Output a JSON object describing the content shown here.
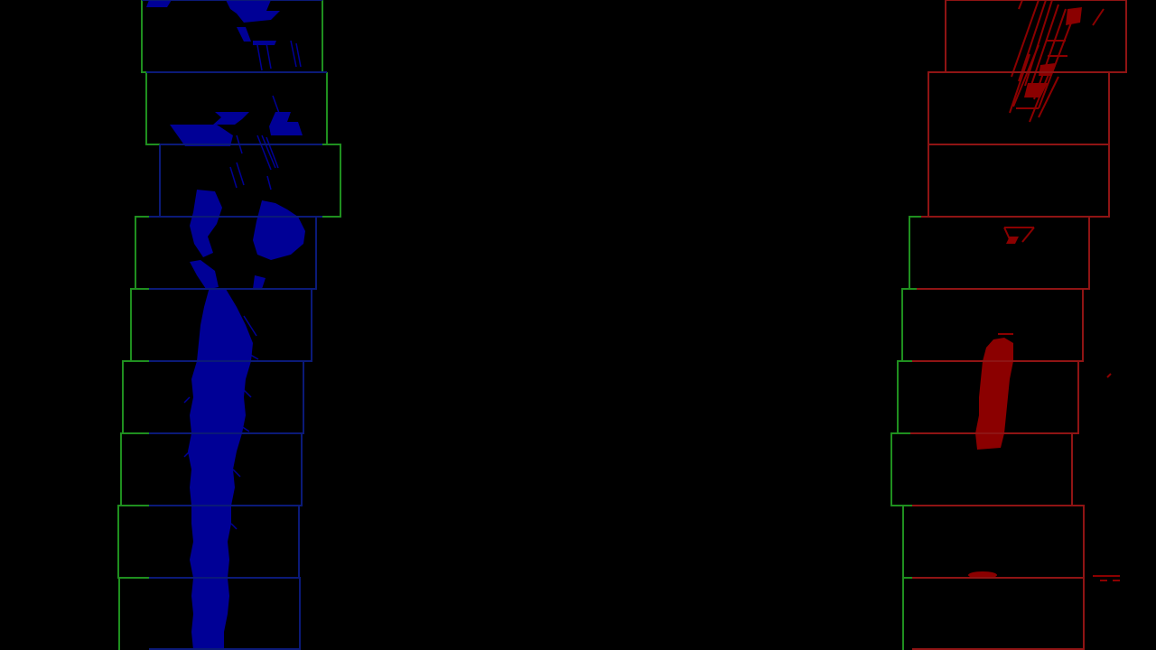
{
  "scene": {
    "background": "#000000",
    "description_colors": {
      "left_lane": "#000096",
      "right_lane": "#8b0000",
      "window_green": "#1f8f1f",
      "window_blue": "#0b1a78",
      "window_red": "#8f1414"
    }
  },
  "left_lane": {
    "label": "",
    "pixel_color": "#000096",
    "window_outline_colors": [
      "#1f8f1f",
      "#0b1a78"
    ]
  },
  "right_lane": {
    "label": "",
    "pixel_color": "#8b0000",
    "window_outline_colors": [
      "#1f8f1f",
      "#8f1414"
    ]
  }
}
